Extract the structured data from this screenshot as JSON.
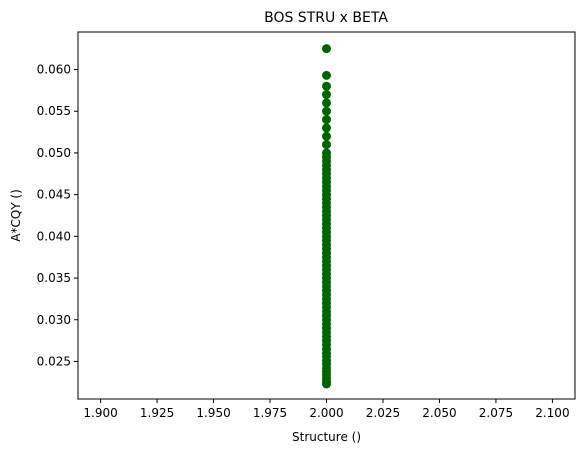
{
  "chart_data": {
    "type": "scatter",
    "title": "BOS STRU x BETA",
    "xlabel": "Structure ()",
    "ylabel": "A*CQY ()",
    "xlim": [
      1.89,
      2.11
    ],
    "ylim": [
      0.0205,
      0.0645
    ],
    "xticks": [
      1.9,
      1.925,
      1.95,
      1.975,
      2.0,
      2.025,
      2.05,
      2.075,
      2.1
    ],
    "xtick_labels": [
      "1.900",
      "1.925",
      "1.950",
      "1.975",
      "2.000",
      "2.025",
      "2.050",
      "2.075",
      "2.100"
    ],
    "yticks": [
      0.025,
      0.03,
      0.035,
      0.04,
      0.045,
      0.05,
      0.055,
      0.06
    ],
    "ytick_labels": [
      "0.025",
      "0.030",
      "0.035",
      "0.040",
      "0.045",
      "0.050",
      "0.055",
      "0.060"
    ],
    "grid": false,
    "marker_color": "#006400",
    "series": [
      {
        "x": [
          2.0,
          2.0,
          2.0,
          2.0,
          2.0,
          2.0,
          2.0,
          2.0,
          2.0,
          2.0,
          2.0,
          2.0,
          2.0,
          2.0,
          2.0,
          2.0,
          2.0,
          2.0,
          2.0,
          2.0,
          2.0,
          2.0,
          2.0,
          2.0,
          2.0,
          2.0,
          2.0,
          2.0,
          2.0,
          2.0,
          2.0,
          2.0,
          2.0,
          2.0,
          2.0,
          2.0,
          2.0,
          2.0,
          2.0,
          2.0,
          2.0,
          2.0,
          2.0,
          2.0,
          2.0,
          2.0,
          2.0,
          2.0,
          2.0,
          2.0,
          2.0,
          2.0,
          2.0,
          2.0,
          2.0,
          2.0,
          2.0,
          2.0,
          2.0,
          2.0,
          2.0,
          2.0,
          2.0,
          2.0,
          2.0,
          2.0,
          2.0,
          2.0
        ],
        "y": [
          0.0223,
          0.0226,
          0.023,
          0.0234,
          0.0238,
          0.0242,
          0.0247,
          0.0251,
          0.0256,
          0.026,
          0.0265,
          0.027,
          0.0275,
          0.028,
          0.0285,
          0.029,
          0.0295,
          0.03,
          0.0305,
          0.031,
          0.0315,
          0.032,
          0.0325,
          0.033,
          0.0335,
          0.034,
          0.0345,
          0.035,
          0.0355,
          0.036,
          0.0365,
          0.037,
          0.0375,
          0.038,
          0.0385,
          0.039,
          0.0395,
          0.04,
          0.0405,
          0.041,
          0.0415,
          0.042,
          0.0425,
          0.043,
          0.0435,
          0.044,
          0.0445,
          0.045,
          0.0455,
          0.046,
          0.0465,
          0.047,
          0.0475,
          0.048,
          0.0485,
          0.049,
          0.0495,
          0.05,
          0.051,
          0.052,
          0.053,
          0.054,
          0.055,
          0.056,
          0.057,
          0.058,
          0.0593,
          0.0625
        ]
      }
    ]
  }
}
